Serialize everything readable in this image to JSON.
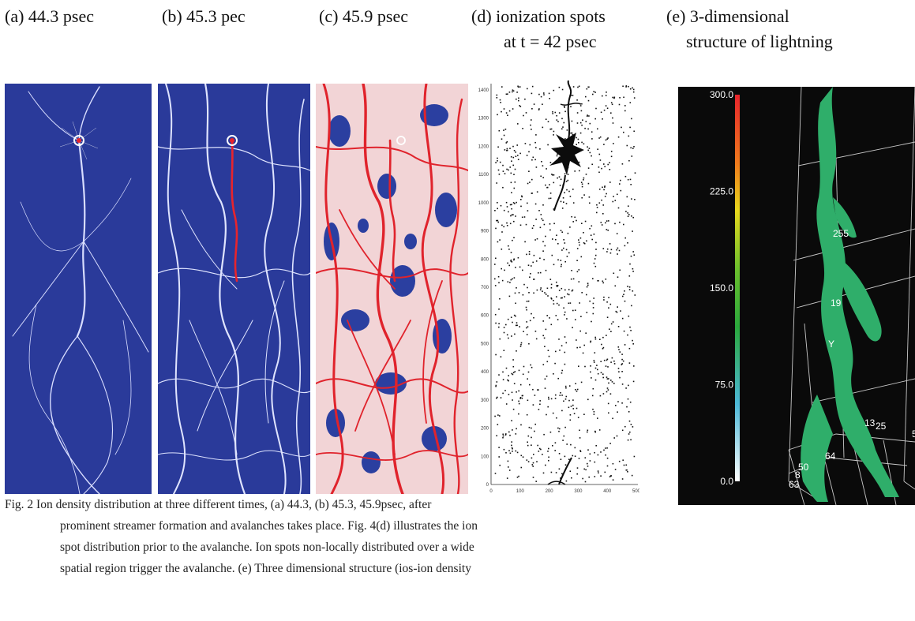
{
  "panels": {
    "a": {
      "title": "(a) 44.3 psec"
    },
    "b": {
      "title": "(b) 45.3 pec"
    },
    "c": {
      "title": "(c) 45.9 psec"
    },
    "d": {
      "title_line1": "(d) ionization spots",
      "title_line2": "at t = 42 psec",
      "y_ticks": [
        "1400",
        "1300",
        "1200",
        "1100",
        "1000",
        "900",
        "800",
        "700",
        "600",
        "500",
        "400",
        "300",
        "200",
        "100",
        "0"
      ],
      "x_ticks": [
        "0",
        "100",
        "200",
        "300",
        "400",
        "500"
      ]
    },
    "e": {
      "title_line1": "(e) 3-dimensional",
      "title_line2": "structure of lightning",
      "colorbar_ticks": [
        "300.0",
        "225.0",
        "150.0",
        "75.0",
        "0.0"
      ],
      "grid_labels": [
        "255",
        "19",
        "Y",
        "64",
        "13",
        "25",
        "50",
        "50",
        "8",
        "63"
      ]
    }
  },
  "caption": {
    "lines": [
      "Fig. 2  Ion density distribution at three different times, (a) 44.3, (b) 45.3, 45.9psec, after",
      "prominent streamer formation and avalanches takes place. Fig. 4(d) illustrates the ion",
      "spot distribution prior to the avalanche. Ion spots non-locally distributed over a wide",
      "spatial region trigger the avalanche. (e) Three dimensional structure (ios-ion density"
    ]
  },
  "colors": {
    "panel_blue": "#2a3a9a",
    "streamer_white": "#e8ecff",
    "streamer_red": "#e8242c",
    "dark_bg": "#0a0a0a",
    "isosurface_green": "#2fae6a"
  }
}
